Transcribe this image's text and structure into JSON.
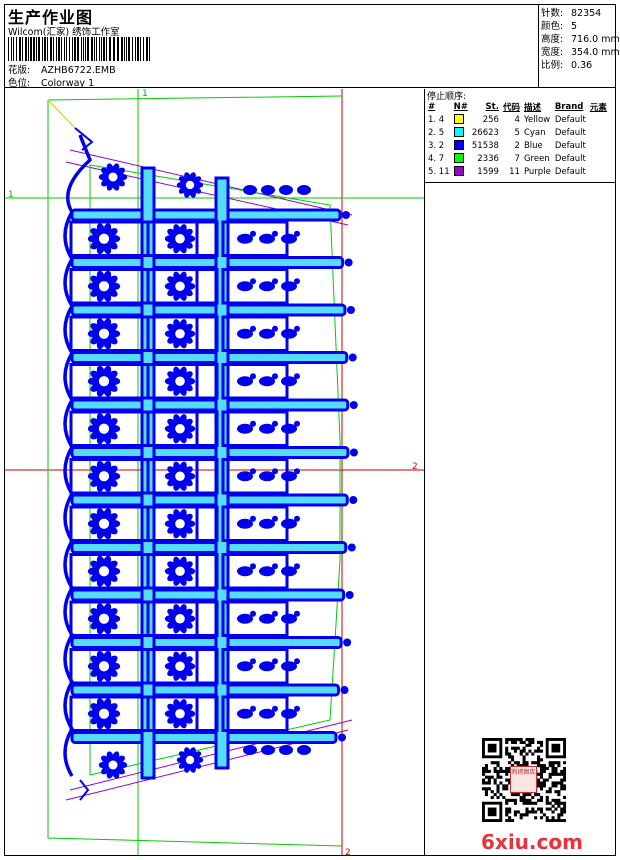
{
  "header": {
    "title": "生产作业图",
    "studio": "Wilcom(汇家) 绣饰工作室",
    "design_label": "花版:",
    "design_value": "AZHB6722.EMB",
    "colorway_label": "色位:",
    "colorway_value": "Colorway 1"
  },
  "stats": [
    {
      "label": "针数:",
      "value": "82354"
    },
    {
      "label": "颜色:",
      "value": "5"
    },
    {
      "label": "高度:",
      "value": "716.0 mm"
    },
    {
      "label": "宽度:",
      "value": "354.0 mm"
    },
    {
      "label": "比例:",
      "value": "0.36"
    }
  ],
  "guides": {
    "v_top": "1",
    "h_left": "1",
    "h_right": "2",
    "v_bottom": "2"
  },
  "stop_sequence": {
    "title": "停止顺序:",
    "headers": [
      "#",
      "N#",
      "St.",
      "代码",
      "描述",
      "Brand",
      "元素"
    ],
    "rows": [
      {
        "idx": "1. 4",
        "color": "#ffff00",
        "st": "256",
        "code": "4",
        "desc": "Yellow",
        "brand": "Default"
      },
      {
        "idx": "2. 5",
        "color": "#00ffff",
        "st": "26623",
        "code": "5",
        "desc": "Cyan",
        "brand": "Default"
      },
      {
        "idx": "3. 2",
        "color": "#0000ff",
        "st": "51538",
        "code": "2",
        "desc": "Blue",
        "brand": "Default"
      },
      {
        "idx": "4. 7",
        "color": "#00ff00",
        "st": "2336",
        "code": "7",
        "desc": "Green",
        "brand": "Default"
      },
      {
        "idx": "5. 11",
        "color": "#9900cc",
        "st": "1599",
        "code": "11",
        "desc": "Purple",
        "brand": "Default"
      }
    ]
  },
  "watermark": "6xiu.com",
  "qr_stamp": "刺绣图库"
}
